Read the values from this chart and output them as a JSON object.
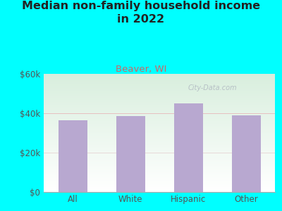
{
  "title": "Median non-family household income\nin 2022",
  "subtitle": "Beaver, WI",
  "categories": [
    "All",
    "White",
    "Hispanic",
    "Other"
  ],
  "values": [
    36500,
    38500,
    45000,
    38800
  ],
  "bar_color": "#b8a8d0",
  "title_fontsize": 11.5,
  "subtitle_fontsize": 9.5,
  "subtitle_color": "#cc6666",
  "title_color": "#222222",
  "tick_label_color": "#555555",
  "ylim": [
    0,
    60000
  ],
  "yticks": [
    0,
    20000,
    40000,
    60000
  ],
  "ytick_labels": [
    "$0",
    "$20k",
    "$40k",
    "$60k"
  ],
  "background_outer": "#00ffff",
  "plot_bg_top_color": "#d8eedd",
  "plot_bg_bottom_color": "#eef5e8",
  "watermark": "City-Data.com",
  "grid_color_40k": "#e8c0c0",
  "grid_color_20k": "#e8d8d8",
  "bar_width": 0.5
}
